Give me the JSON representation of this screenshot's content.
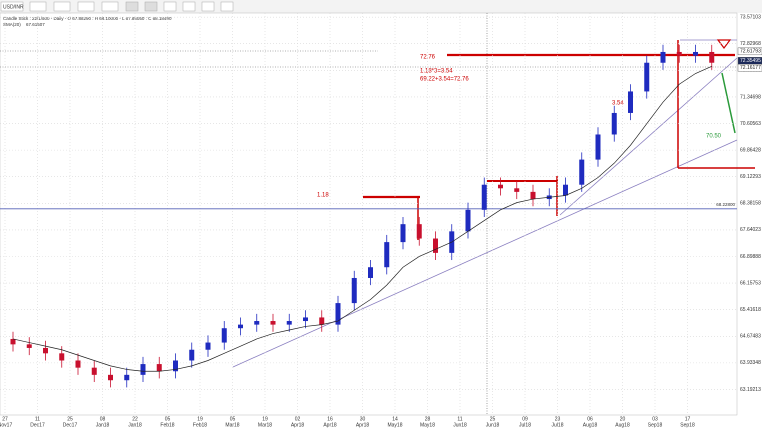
{
  "toolbar": {
    "symbol": "USD/INR"
  },
  "chart_data": {
    "type": "candlestick",
    "header": "Candle Stick : 22/1/500 - Daily - O 67.88290 : H 68.10000 - L 67.85050 : C 68.18490",
    "sma_label": "SMA(20)",
    "sma_value": "67.61507",
    "categories": [
      "27",
      null,
      "11",
      null,
      "25",
      null,
      "08",
      null,
      "22",
      null,
      "05",
      null,
      "19",
      null,
      "05",
      null,
      "19",
      null,
      "02",
      null,
      "16",
      null,
      "30",
      null,
      "14",
      null,
      "28",
      null,
      "11",
      null,
      "25",
      null,
      "09",
      null,
      "23",
      null,
      "06",
      null,
      "20",
      null,
      "03",
      null,
      "17",
      null
    ],
    "x_sublabels": [
      "Nov17",
      null,
      "Dec17",
      null,
      "Dec17",
      null,
      "Jan18",
      null,
      "Jan18",
      null,
      "Feb18",
      null,
      "Feb18",
      null,
      "Mar18",
      null,
      "Mar18",
      null,
      "Apr18",
      null,
      "Apr18",
      null,
      "Apr18",
      null,
      "May18",
      null,
      "May18",
      null,
      "Jun18",
      null,
      "Jun18",
      null,
      "Jul18",
      null,
      "Jul18",
      null,
      "Aug18",
      null,
      "Aug18",
      null,
      "Sep18",
      null,
      "Sep18",
      null
    ],
    "open": [
      64.6,
      64.45,
      64.35,
      64.2,
      64.0,
      63.8,
      63.6,
      63.45,
      63.6,
      63.9,
      63.7,
      64.0,
      64.3,
      64.5,
      64.9,
      65.0,
      65.1,
      65.0,
      65.1,
      65.2,
      65.0,
      65.6,
      66.3,
      66.6,
      67.3,
      67.8,
      67.4,
      67.0,
      67.6,
      68.2,
      68.9,
      68.8,
      68.7,
      68.5,
      68.6,
      68.9,
      69.6,
      70.3,
      70.9,
      71.5,
      72.3,
      72.6,
      72.5,
      72.6
    ],
    "high": [
      64.8,
      64.65,
      64.55,
      64.4,
      64.2,
      64.0,
      63.8,
      63.8,
      64.1,
      64.1,
      64.2,
      64.5,
      64.7,
      65.1,
      65.2,
      65.3,
      65.3,
      65.3,
      65.4,
      65.4,
      65.8,
      66.5,
      66.8,
      67.5,
      68.0,
      68.0,
      67.6,
      67.8,
      68.4,
      69.1,
      69.1,
      69.0,
      68.9,
      68.8,
      69.1,
      69.8,
      70.5,
      71.1,
      71.7,
      72.5,
      72.8,
      72.8,
      72.8,
      72.8
    ],
    "low": [
      64.25,
      64.15,
      64.0,
      63.8,
      63.6,
      63.4,
      63.25,
      63.25,
      63.4,
      63.5,
      63.5,
      63.8,
      64.1,
      64.3,
      64.7,
      64.8,
      64.8,
      64.8,
      64.9,
      64.8,
      64.8,
      65.4,
      66.1,
      66.4,
      67.1,
      67.2,
      66.8,
      66.8,
      67.4,
      68.0,
      68.6,
      68.5,
      68.3,
      68.3,
      68.4,
      68.7,
      69.4,
      70.1,
      70.7,
      71.3,
      72.1,
      72.3,
      72.3,
      72.1
    ],
    "close": [
      64.45,
      64.35,
      64.2,
      64.0,
      63.8,
      63.6,
      63.45,
      63.6,
      63.9,
      63.7,
      64.0,
      64.3,
      64.5,
      64.9,
      65.0,
      65.1,
      65.0,
      65.1,
      65.2,
      65.0,
      65.6,
      66.3,
      66.6,
      67.3,
      67.8,
      67.4,
      67.0,
      67.6,
      68.2,
      68.9,
      68.8,
      68.7,
      68.5,
      68.6,
      68.9,
      69.6,
      70.3,
      70.9,
      71.5,
      72.3,
      72.6,
      72.5,
      72.6,
      72.3
    ],
    "sma": [
      64.6,
      64.5,
      64.4,
      64.3,
      64.15,
      64.0,
      63.85,
      63.75,
      63.7,
      63.7,
      63.75,
      63.85,
      64.0,
      64.2,
      64.4,
      64.6,
      64.75,
      64.85,
      64.95,
      65.0,
      65.1,
      65.4,
      65.7,
      66.1,
      66.6,
      66.9,
      67.1,
      67.3,
      67.6,
      67.9,
      68.2,
      68.4,
      68.5,
      68.55,
      68.6,
      68.8,
      69.1,
      69.5,
      70.0,
      70.6,
      71.2,
      71.7,
      72.0,
      72.2
    ],
    "up_color": "#1f2bbf",
    "down_color": "#c8102e",
    "sma_color": "#222222",
    "ylim": [
      62.62,
      73.77
    ],
    "yticks": [
      73.57103,
      72.82968,
      72.08833,
      71.34698,
      70.60563,
      69.86428,
      69.12293,
      68.38158,
      67.64023,
      66.89888,
      66.15753,
      65.41618,
      64.67483,
      63.93348,
      63.19213
    ],
    "grid": true,
    "level_line": {
      "value": 68.228,
      "label": "68.22800"
    },
    "price_boxes": [
      {
        "value": 72.61793,
        "label": "72.61793"
      },
      {
        "value": 72.35495,
        "label": "72.35495"
      },
      {
        "value": 72.16177,
        "label": "72.16177"
      }
    ],
    "annotations": [
      "72.76",
      "1.18*3=3.54",
      "69.22+3.54=72.76",
      "3.54",
      "1.18",
      "70.50"
    ]
  }
}
